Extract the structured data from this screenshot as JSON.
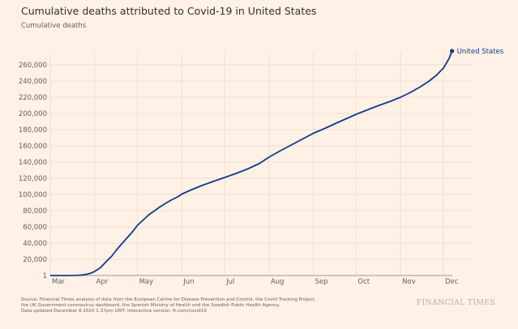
{
  "header": {
    "title": "Cumulative deaths attributed to Covid-19 in United States",
    "subtitle": "Cumulative deaths"
  },
  "footer": {
    "lines": [
      "Source: Financial Times analysis of data from the European Centre for Disease Prevention and Control, the Covid Tracking Project,",
      "the UK Government coronavirus dashboard, the Spanish Ministry of Health and the Swedish Public Health Agency.",
      "Data updated December 8 2020 1.37pm GMT. Interactive version: ft.com/covid19"
    ],
    "brand": "FINANCIAL TIMES"
  },
  "colors": {
    "background": "#fff1e5",
    "series": "#0f3b8c",
    "grid": "#ede0d4"
  },
  "chart_data": {
    "type": "line",
    "title": "Cumulative deaths attributed to Covid-19 in United States",
    "ylabel": "Cumulative deaths",
    "xlabel": "",
    "ylim": [
      0,
      275000
    ],
    "xlim_days_from_mar1": [
      0,
      282
    ],
    "grid": true,
    "y_ticks": [
      {
        "value": 1,
        "label": "1"
      },
      {
        "value": 20000,
        "label": "20,000"
      },
      {
        "value": 40000,
        "label": "40,000"
      },
      {
        "value": 60000,
        "label": "60,000"
      },
      {
        "value": 80000,
        "label": "80,000"
      },
      {
        "value": 100000,
        "label": "100,000"
      },
      {
        "value": 120000,
        "label": "120,000"
      },
      {
        "value": 140000,
        "label": "140,000"
      },
      {
        "value": 160000,
        "label": "160,000"
      },
      {
        "value": 180000,
        "label": "180,000"
      },
      {
        "value": 200000,
        "label": "200,000"
      },
      {
        "value": 220000,
        "label": "220,000"
      },
      {
        "value": 240000,
        "label": "240,000"
      },
      {
        "value": 260000,
        "label": "260,000"
      }
    ],
    "x_ticks": [
      {
        "day": 0,
        "label": "Mar"
      },
      {
        "day": 31,
        "label": "Apr"
      },
      {
        "day": 61,
        "label": "May"
      },
      {
        "day": 92,
        "label": "Jun"
      },
      {
        "day": 122,
        "label": "Jul"
      },
      {
        "day": 153,
        "label": "Aug"
      },
      {
        "day": 184,
        "label": "Sep"
      },
      {
        "day": 214,
        "label": "Oct"
      },
      {
        "day": 245,
        "label": "Nov"
      },
      {
        "day": 275,
        "label": "Dec"
      }
    ],
    "legend": "end-of-line label",
    "series": [
      {
        "name": "United States",
        "x_days_from_mar1": [
          0,
          10,
          18,
          22,
          26,
          29,
          31,
          35,
          39,
          43,
          47,
          51,
          55,
          58,
          61,
          65,
          69,
          73,
          77,
          81,
          85,
          89,
          92,
          99,
          106,
          113,
          122,
          130,
          138,
          146,
          153,
          161,
          169,
          176,
          184,
          192,
          200,
          207,
          214,
          222,
          230,
          238,
          245,
          252,
          259,
          265,
          270,
          275,
          279,
          281
        ],
        "values": [
          1,
          30,
          150,
          600,
          1800,
          3300,
          5000,
          9500,
          17000,
          24000,
          33000,
          41000,
          49000,
          55000,
          62000,
          68500,
          75000,
          80000,
          85000,
          89500,
          93500,
          97000,
          100500,
          106000,
          111000,
          115500,
          121000,
          126000,
          131500,
          138000,
          146000,
          154000,
          161500,
          168000,
          175500,
          181500,
          188000,
          193500,
          199000,
          204500,
          210000,
          215000,
          220000,
          226000,
          233000,
          240000,
          247000,
          256000,
          268000,
          277000
        ]
      }
    ]
  }
}
